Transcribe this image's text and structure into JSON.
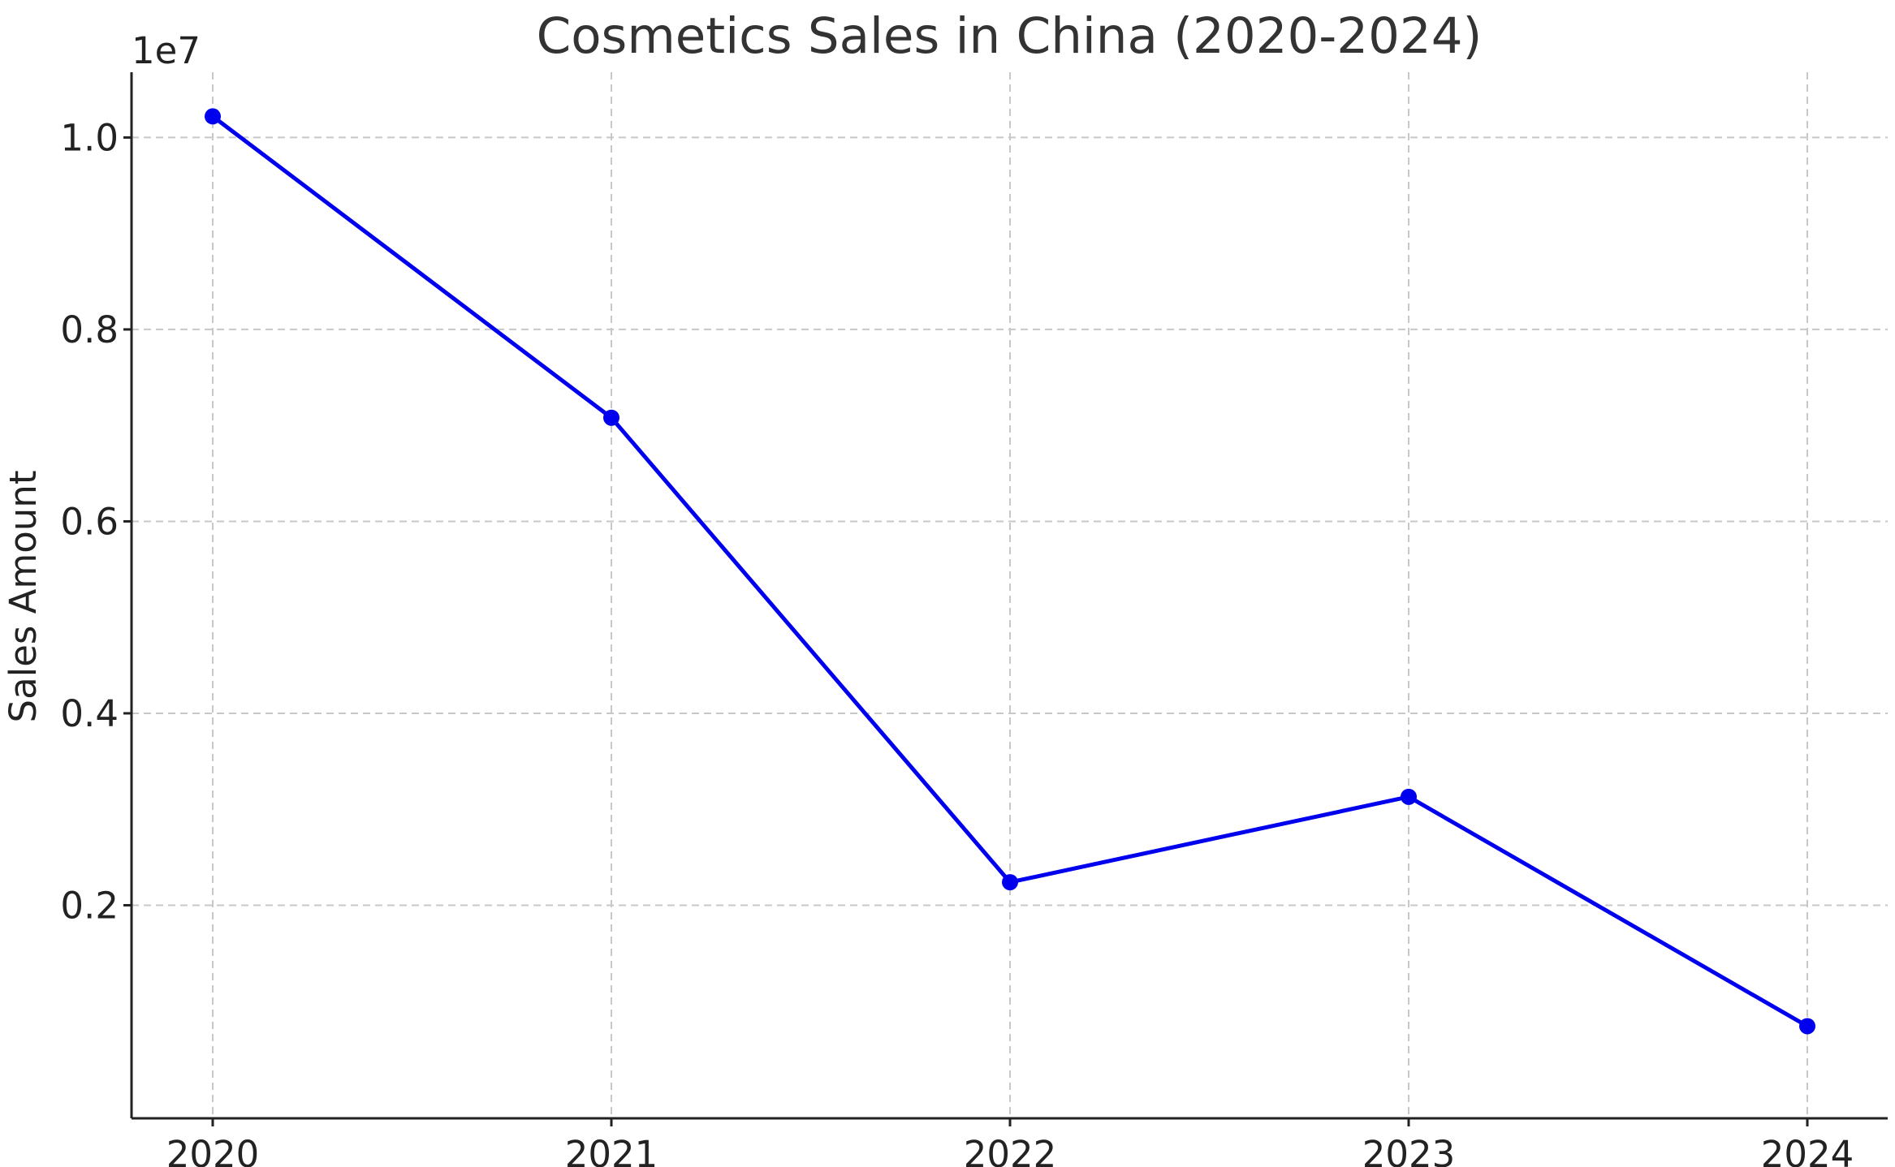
{
  "chart_data": {
    "type": "line",
    "title": "Cosmetics Sales in China (2020-2024)",
    "xlabel": "",
    "ylabel": "Sales Amount",
    "y_offset_label": "1e7",
    "x": [
      "2020",
      "2021",
      "2022",
      "2023",
      "2024"
    ],
    "series": [
      {
        "values": [
          10220000,
          7080000,
          2240000,
          3130000,
          740000
        ],
        "color": "#0000ee",
        "marker": "circle"
      }
    ],
    "ylim": [
      -220000,
      10680000
    ],
    "yticks": [
      2000000,
      4000000,
      6000000,
      8000000,
      10000000
    ],
    "ytick_labels": [
      "0.2",
      "0.4",
      "0.6",
      "0.8",
      "1.0"
    ],
    "grid": true
  }
}
